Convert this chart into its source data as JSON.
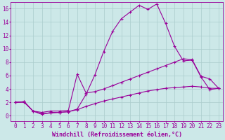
{
  "background_color": "#cce8e8",
  "line_color": "#990099",
  "grid_color": "#aacccc",
  "xlabel": "Windchill (Refroidissement éolien,°C)",
  "xlim": [
    -0.5,
    23.5
  ],
  "ylim": [
    -0.8,
    17
  ],
  "yticks": [
    0,
    2,
    4,
    6,
    8,
    10,
    12,
    14,
    16
  ],
  "xticks": [
    0,
    1,
    2,
    3,
    4,
    5,
    6,
    7,
    8,
    9,
    10,
    11,
    12,
    13,
    14,
    15,
    16,
    17,
    18,
    19,
    20,
    21,
    22,
    23
  ],
  "line1_x": [
    0,
    1,
    2,
    3,
    4,
    5,
    6,
    7,
    8,
    9,
    10,
    11,
    12,
    13,
    14,
    15,
    16,
    17,
    18,
    19,
    20,
    21,
    22,
    23
  ],
  "line1_y": [
    2.0,
    2.1,
    0.7,
    0.2,
    0.5,
    0.5,
    0.6,
    1.0,
    3.2,
    6.1,
    9.6,
    12.6,
    14.5,
    15.5,
    16.5,
    15.9,
    16.7,
    13.8,
    10.4,
    8.2,
    8.3,
    5.8,
    3.9,
    4.1
  ],
  "line2_x": [
    0,
    1,
    2,
    3,
    4,
    5,
    6,
    7,
    8,
    9,
    10,
    11,
    12,
    13,
    14,
    15,
    16,
    17,
    18,
    19,
    20,
    21,
    22,
    23
  ],
  "line2_y": [
    2.0,
    2.1,
    0.7,
    0.5,
    0.7,
    0.7,
    0.8,
    6.2,
    3.4,
    3.6,
    4.0,
    4.5,
    5.0,
    5.5,
    6.0,
    6.5,
    7.0,
    7.5,
    8.0,
    8.5,
    8.4,
    5.9,
    5.5,
    4.1
  ],
  "line3_x": [
    0,
    1,
    2,
    3,
    4,
    5,
    6,
    7,
    8,
    9,
    10,
    11,
    12,
    13,
    14,
    15,
    16,
    17,
    18,
    19,
    20,
    21,
    22,
    23
  ],
  "line3_y": [
    2.0,
    2.0,
    0.7,
    0.3,
    0.4,
    0.5,
    0.6,
    0.9,
    1.4,
    1.8,
    2.2,
    2.5,
    2.8,
    3.1,
    3.4,
    3.7,
    3.9,
    4.1,
    4.2,
    4.3,
    4.4,
    4.3,
    4.1,
    4.1
  ],
  "marker": "+",
  "markersize": 3,
  "markeredgewidth": 0.8,
  "linewidth": 0.8,
  "label_fontsize": 6,
  "tick_fontsize": 5.5
}
